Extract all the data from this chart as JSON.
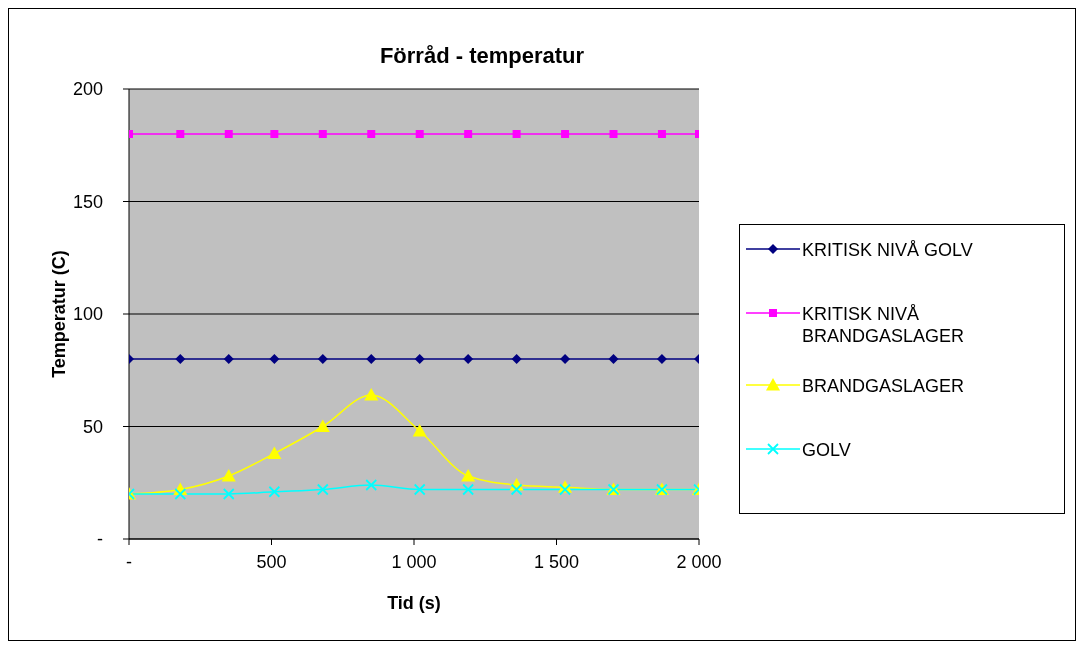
{
  "chart_data": {
    "type": "line",
    "title": "Förråd - temperatur",
    "xlabel": "Tid (s)",
    "ylabel": "Temperatur (C)",
    "x": [
      0,
      180,
      350,
      510,
      680,
      850,
      1020,
      1190,
      1360,
      1530,
      1700,
      1870,
      2000
    ],
    "series": [
      {
        "name": "KRITISK NIVÅ GOLV",
        "color": "#000080",
        "marker": "diamond",
        "values": [
          80,
          80,
          80,
          80,
          80,
          80,
          80,
          80,
          80,
          80,
          80,
          80,
          80
        ]
      },
      {
        "name": "KRITISK NIVÅ BRANDGASLAGER",
        "color": "#ff00ff",
        "marker": "square",
        "values": [
          180,
          180,
          180,
          180,
          180,
          180,
          180,
          180,
          180,
          180,
          180,
          180,
          180
        ]
      },
      {
        "name": "BRANDGASLAGER",
        "color": "#ffff00",
        "marker": "triangle",
        "values": [
          20,
          22,
          28,
          38,
          50,
          64,
          48,
          28,
          24,
          23,
          22,
          22,
          22
        ]
      },
      {
        "name": "GOLV",
        "color": "#00ffff",
        "marker": "cross",
        "values": [
          20,
          20,
          20,
          21,
          22,
          24,
          22,
          22,
          22,
          22,
          22,
          22,
          22
        ]
      }
    ],
    "xlim": [
      0,
      2000
    ],
    "xticks": [
      {
        "value": 0,
        "label": "-"
      },
      500,
      {
        "value": 1000,
        "label": "1 000"
      },
      {
        "value": 1500,
        "label": "1 500"
      },
      {
        "value": 2000,
        "label": "2 000"
      }
    ],
    "ylim": [
      0,
      200
    ],
    "yticks": [
      {
        "value": 0,
        "label": "-"
      },
      50,
      100,
      150,
      200
    ],
    "grid": "y",
    "legend": "right",
    "line_style": "solid"
  }
}
